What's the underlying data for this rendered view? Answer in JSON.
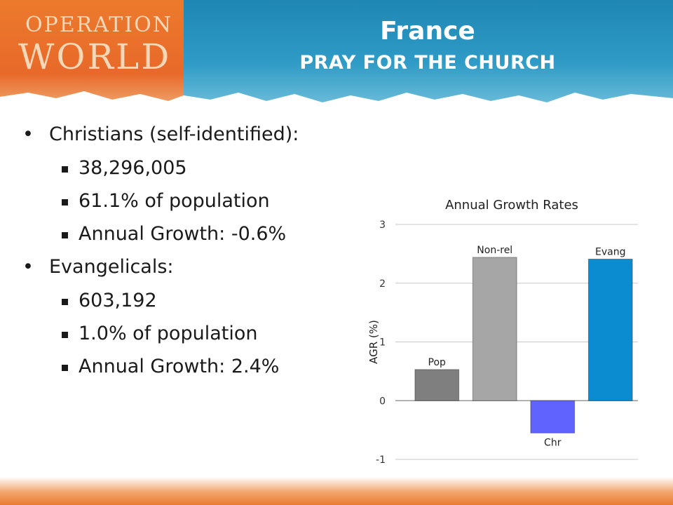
{
  "header": {
    "logo_line1": "OPERATION",
    "logo_line2": "WORLD",
    "title": "France",
    "subtitle": "PRAY FOR THE CHURCH"
  },
  "bullets": [
    {
      "label": "Christians (self-identified):",
      "items": [
        "38,296,005",
        "61.1% of population",
        "Annual Growth: -0.6%"
      ]
    },
    {
      "label": "Evangelicals:",
      "items": [
        "603,192",
        "1.0% of population",
        "Annual Growth: 2.4%"
      ]
    }
  ],
  "chart_data": {
    "type": "bar",
    "title": "Annual Growth Rates",
    "xlabel": "",
    "ylabel": "AGR (%)",
    "ylim": [
      -1,
      3
    ],
    "yticks": [
      -1,
      0,
      1,
      2,
      3
    ],
    "grid": true,
    "categories": [
      "Pop",
      "Non-rel",
      "Chr",
      "Evang"
    ],
    "values": [
      0.53,
      2.44,
      -0.55,
      2.41
    ],
    "colors": [
      "#7f7f7f",
      "#a6a6a6",
      "#6163ff",
      "#0b8bd0"
    ]
  }
}
